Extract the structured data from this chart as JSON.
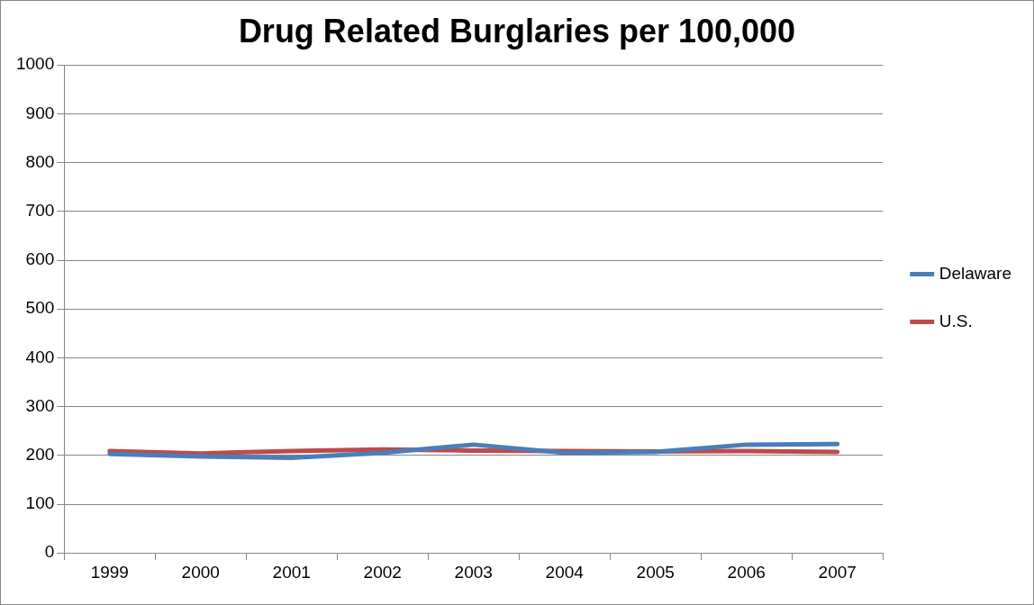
{
  "chart_data": {
    "type": "line",
    "title": "Drug Related Burglaries per 100,000",
    "categories": [
      "1999",
      "2000",
      "2001",
      "2002",
      "2003",
      "2004",
      "2005",
      "2006",
      "2007"
    ],
    "series": [
      {
        "name": "Delaware",
        "color": "#4a7ebb",
        "values": [
          203,
          198,
          195,
          205,
          222,
          205,
          207,
          222,
          223
        ]
      },
      {
        "name": "U.S.",
        "color": "#be4b48",
        "values": [
          209,
          204,
          209,
          212,
          210,
          209,
          208,
          209,
          207
        ]
      }
    ],
    "ylim": [
      0,
      1000
    ],
    "yticks": [
      0,
      100,
      200,
      300,
      400,
      500,
      600,
      700,
      800,
      900,
      1000
    ],
    "grid": "y",
    "legend": "right",
    "marker": "none",
    "line_style": "solid"
  }
}
